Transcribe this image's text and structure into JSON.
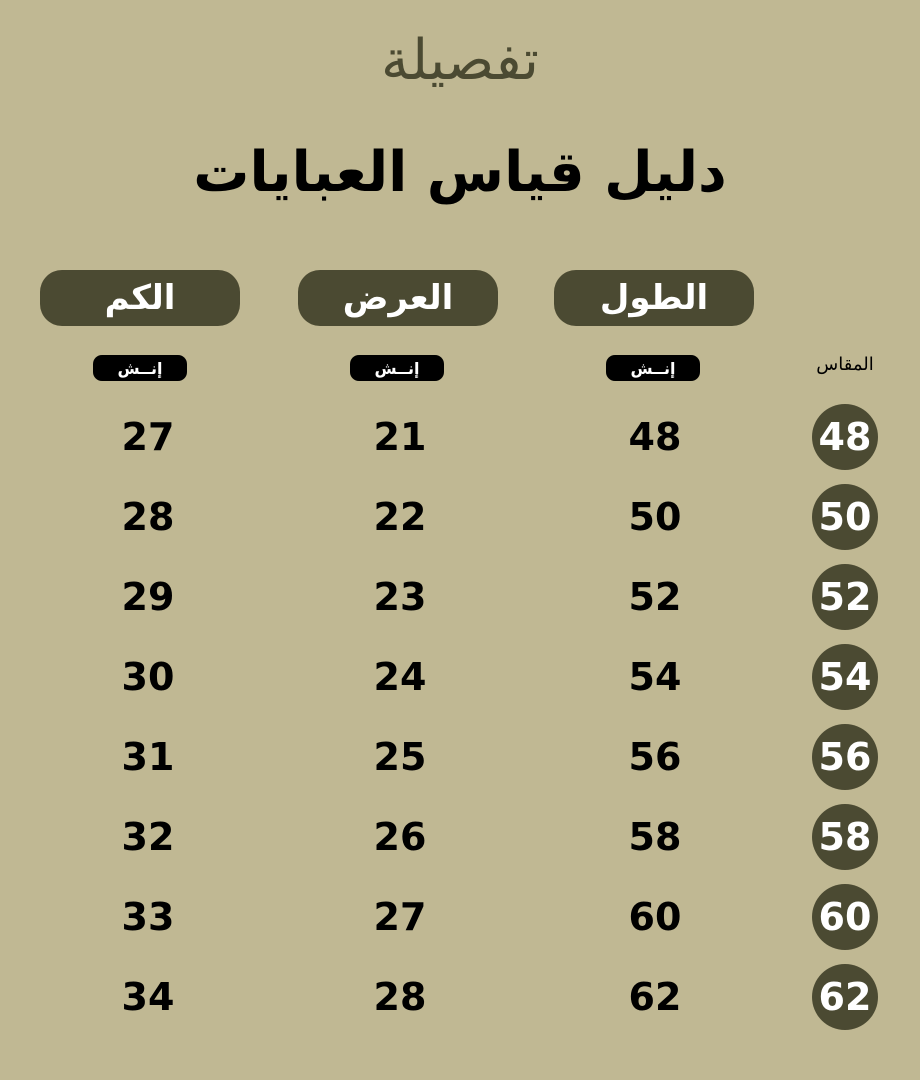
{
  "brand": "تفصيلة",
  "title": "دليل قياس العبايات",
  "headers": {
    "length": "الطول",
    "width": "العرض",
    "sleeve": "الكم",
    "size": "المقاس"
  },
  "unit": "إنــش",
  "colors": {
    "background": "#c0b893",
    "accent": "#4b4a32"
  },
  "rows": [
    {
      "size": "48",
      "length": "48",
      "width": "21",
      "sleeve": "27"
    },
    {
      "size": "50",
      "length": "50",
      "width": "22",
      "sleeve": "28"
    },
    {
      "size": "52",
      "length": "52",
      "width": "23",
      "sleeve": "29"
    },
    {
      "size": "54",
      "length": "54",
      "width": "24",
      "sleeve": "30"
    },
    {
      "size": "56",
      "length": "56",
      "width": "25",
      "sleeve": "31"
    },
    {
      "size": "58",
      "length": "58",
      "width": "26",
      "sleeve": "32"
    },
    {
      "size": "60",
      "length": "60",
      "width": "27",
      "sleeve": "33"
    },
    {
      "size": "62",
      "length": "62",
      "width": "28",
      "sleeve": "34"
    }
  ]
}
